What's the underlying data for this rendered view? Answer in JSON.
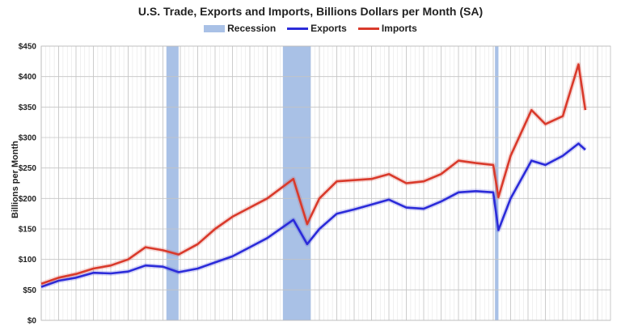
{
  "chart_data": {
    "type": "line",
    "title": "U.S. Trade, Exports and Imports, Billions Dollars per Month (SA)",
    "xlabel": "",
    "ylabel": "Billions per Month",
    "ylim": [
      0,
      450
    ],
    "y_ticks": [
      "$0",
      "$50",
      "$100",
      "$150",
      "$200",
      "$250",
      "$300",
      "$350",
      "$400",
      "$450"
    ],
    "x_ticks": [],
    "grid": true,
    "legend_position": "top",
    "legend": [
      "Recession",
      "Exports",
      "Imports"
    ],
    "colors": {
      "recession": "#a9c1e6",
      "exports": "#2b2bd9",
      "imports": "#d93a2b"
    },
    "x": [
      1994,
      1995,
      1996,
      1997,
      1998,
      1999,
      2000,
      2001,
      2001.9,
      2003,
      2004,
      2005,
      2006,
      2007,
      2008.5,
      2009.3,
      2010,
      2011,
      2012,
      2013,
      2014,
      2015,
      2016,
      2017,
      2018,
      2019,
      2020.0,
      2020.3,
      2021,
      2022.2,
      2023,
      2024,
      2024.9,
      2025.3
    ],
    "series": [
      {
        "name": "Exports",
        "values": [
          55,
          65,
          70,
          78,
          77,
          80,
          90,
          88,
          79,
          85,
          95,
          105,
          120,
          135,
          165,
          125,
          150,
          175,
          182,
          190,
          198,
          185,
          183,
          195,
          210,
          212,
          210,
          148,
          200,
          262,
          255,
          270,
          290,
          280
        ]
      },
      {
        "name": "Imports",
        "values": [
          60,
          70,
          76,
          85,
          90,
          100,
          120,
          115,
          108,
          125,
          150,
          170,
          185,
          200,
          232,
          158,
          200,
          228,
          230,
          232,
          240,
          225,
          228,
          240,
          262,
          258,
          255,
          202,
          270,
          345,
          322,
          335,
          420,
          345
        ]
      }
    ],
    "recessions": [
      {
        "start": 2001.2,
        "end": 2001.9
      },
      {
        "start": 2007.9,
        "end": 2009.5
      },
      {
        "start": 2020.1,
        "end": 2020.3
      }
    ]
  }
}
